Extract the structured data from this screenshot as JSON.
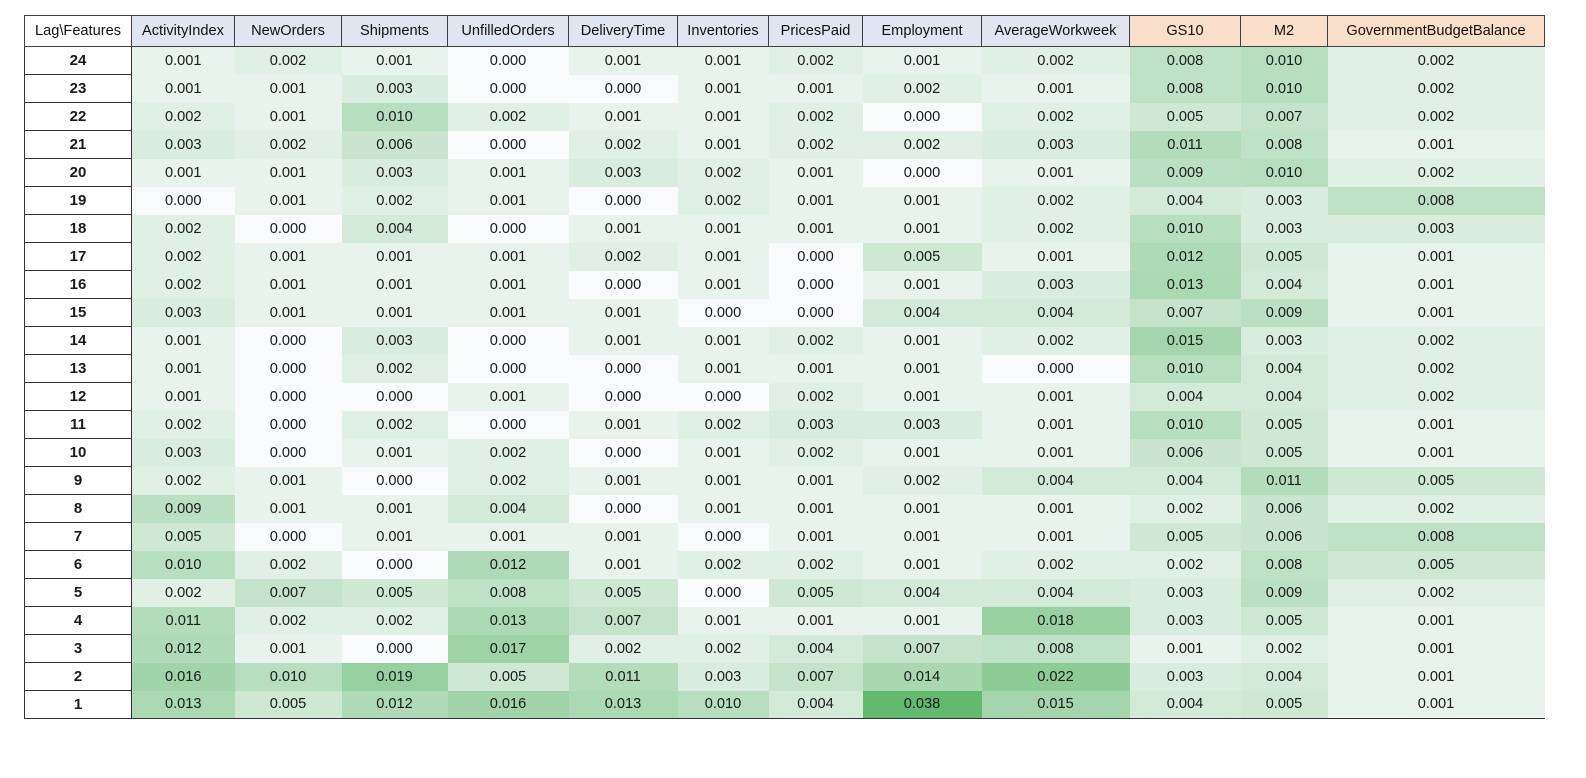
{
  "chart_data": {
    "type": "heatmap",
    "title": "",
    "corner_label": "Lag\\Features",
    "columns": [
      "ActivityIndex",
      "NewOrders",
      "Shipments",
      "UnfilledOrders",
      "DeliveryTime",
      "Inventories",
      "PricesPaid",
      "Employment",
      "AverageWorkweek",
      "GS10",
      "M2",
      "GovernmentBudgetBalance"
    ],
    "column_groups": [
      {
        "name": "group-a",
        "header_color": "#dfe5f1",
        "columns": [
          "ActivityIndex",
          "NewOrders",
          "Shipments",
          "UnfilledOrders",
          "DeliveryTime",
          "Inventories",
          "PricesPaid",
          "Employment",
          "AverageWorkweek"
        ]
      },
      {
        "name": "group-b",
        "header_color": "#f9dfca",
        "columns": [
          "GS10",
          "M2",
          "GovernmentBudgetBalance"
        ]
      }
    ],
    "rows": [
      24,
      23,
      22,
      21,
      20,
      19,
      18,
      17,
      16,
      15,
      14,
      13,
      12,
      11,
      10,
      9,
      8,
      7,
      6,
      5,
      4,
      3,
      2,
      1
    ],
    "values": [
      [
        0.001,
        0.002,
        0.001,
        0.0,
        0.001,
        0.001,
        0.002,
        0.001,
        0.002,
        0.008,
        0.01,
        0.002
      ],
      [
        0.001,
        0.001,
        0.003,
        0.0,
        0.0,
        0.001,
        0.001,
        0.002,
        0.001,
        0.008,
        0.01,
        0.002
      ],
      [
        0.002,
        0.001,
        0.01,
        0.002,
        0.001,
        0.001,
        0.002,
        0.0,
        0.002,
        0.005,
        0.007,
        0.002
      ],
      [
        0.003,
        0.002,
        0.006,
        0.0,
        0.002,
        0.001,
        0.002,
        0.002,
        0.003,
        0.011,
        0.008,
        0.001
      ],
      [
        0.001,
        0.001,
        0.003,
        0.001,
        0.003,
        0.002,
        0.001,
        0.0,
        0.001,
        0.009,
        0.01,
        0.002
      ],
      [
        0.0,
        0.001,
        0.002,
        0.001,
        0.0,
        0.002,
        0.001,
        0.001,
        0.002,
        0.004,
        0.003,
        0.008
      ],
      [
        0.002,
        0.0,
        0.004,
        0.0,
        0.001,
        0.001,
        0.001,
        0.001,
        0.002,
        0.01,
        0.003,
        0.003
      ],
      [
        0.002,
        0.001,
        0.001,
        0.001,
        0.002,
        0.001,
        0.0,
        0.005,
        0.001,
        0.012,
        0.005,
        0.001
      ],
      [
        0.002,
        0.001,
        0.001,
        0.001,
        0.0,
        0.001,
        0.0,
        0.001,
        0.003,
        0.013,
        0.004,
        0.001
      ],
      [
        0.003,
        0.001,
        0.001,
        0.001,
        0.001,
        0.0,
        0.0,
        0.004,
        0.004,
        0.007,
        0.009,
        0.001
      ],
      [
        0.001,
        0.0,
        0.003,
        0.0,
        0.001,
        0.001,
        0.002,
        0.001,
        0.002,
        0.015,
        0.003,
        0.002
      ],
      [
        0.001,
        0.0,
        0.002,
        0.0,
        0.0,
        0.001,
        0.001,
        0.001,
        0.0,
        0.01,
        0.004,
        0.002
      ],
      [
        0.001,
        0.0,
        0.0,
        0.001,
        0.0,
        0.0,
        0.002,
        0.001,
        0.001,
        0.004,
        0.004,
        0.002
      ],
      [
        0.002,
        0.0,
        0.002,
        0.0,
        0.001,
        0.002,
        0.003,
        0.003,
        0.001,
        0.01,
        0.005,
        0.001
      ],
      [
        0.003,
        0.0,
        0.001,
        0.002,
        0.0,
        0.001,
        0.002,
        0.001,
        0.001,
        0.006,
        0.005,
        0.001
      ],
      [
        0.002,
        0.001,
        0.0,
        0.002,
        0.001,
        0.001,
        0.001,
        0.002,
        0.004,
        0.004,
        0.011,
        0.005
      ],
      [
        0.009,
        0.001,
        0.001,
        0.004,
        0.0,
        0.001,
        0.001,
        0.001,
        0.001,
        0.002,
        0.006,
        0.002
      ],
      [
        0.005,
        0.0,
        0.001,
        0.001,
        0.001,
        0.0,
        0.001,
        0.001,
        0.001,
        0.005,
        0.006,
        0.008
      ],
      [
        0.01,
        0.002,
        0.0,
        0.012,
        0.001,
        0.002,
        0.002,
        0.001,
        0.002,
        0.002,
        0.008,
        0.005
      ],
      [
        0.002,
        0.007,
        0.005,
        0.008,
        0.005,
        0.0,
        0.005,
        0.004,
        0.004,
        0.003,
        0.009,
        0.002
      ],
      [
        0.011,
        0.002,
        0.002,
        0.013,
        0.007,
        0.001,
        0.001,
        0.001,
        0.018,
        0.003,
        0.005,
        0.001
      ],
      [
        0.012,
        0.001,
        0.0,
        0.017,
        0.002,
        0.002,
        0.004,
        0.007,
        0.008,
        0.001,
        0.002,
        0.001
      ],
      [
        0.016,
        0.01,
        0.019,
        0.005,
        0.011,
        0.003,
        0.007,
        0.014,
        0.022,
        0.003,
        0.004,
        0.001
      ],
      [
        0.013,
        0.005,
        0.012,
        0.016,
        0.013,
        0.01,
        0.004,
        0.038,
        0.015,
        0.004,
        0.005,
        0.001
      ]
    ],
    "value_range": [
      0.0,
      0.038
    ],
    "color_scale": {
      "low": "#f8fafc",
      "high": "#63b96e"
    },
    "decimals": 3
  }
}
